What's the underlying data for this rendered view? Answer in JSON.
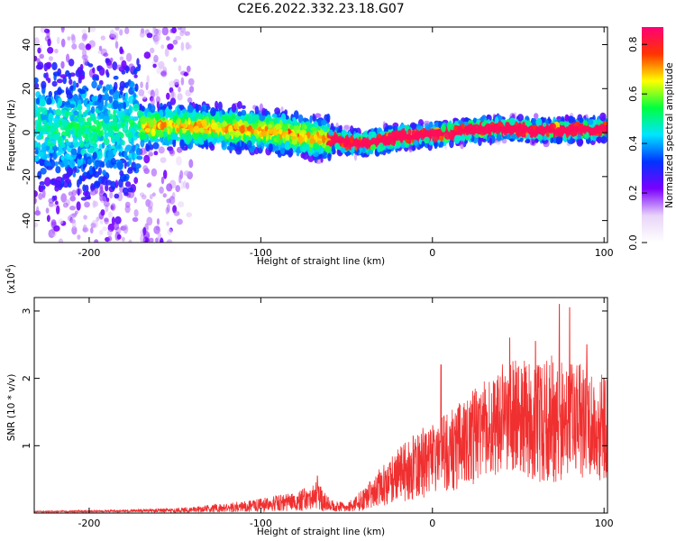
{
  "page": {
    "title": "C2E6.2022.332.23.18.G07"
  },
  "chart_data": [
    {
      "type": "heatmap",
      "xlabel": "Height of straight line (km)",
      "ylabel": "Frequency (Hz)",
      "xlim": [
        -232,
        102
      ],
      "ylim": [
        -50,
        48
      ],
      "xticks": [
        -200,
        -100,
        0,
        100
      ],
      "yticks": [
        -40,
        -20,
        0,
        20,
        40
      ],
      "colorbar": {
        "label": "Normalized spectral amplitude",
        "range": [
          0.0,
          0.87
        ],
        "ticks": [
          0.0,
          0.2,
          0.4,
          0.6,
          0.8
        ],
        "tick_labels": [
          "0.0",
          "0.2",
          "0.4",
          "0.6",
          "0.8"
        ],
        "colormap": [
          "#ffffff",
          "#e8d4f8",
          "#7b00ff",
          "#0033ff",
          "#00e5ff",
          "#00ff40",
          "#ffff00",
          "#ff3300",
          "#ff0077"
        ]
      },
      "ridge": [
        {
          "x": -190,
          "y": 2
        },
        {
          "x": -150,
          "y": 3
        },
        {
          "x": -120,
          "y": 2
        },
        {
          "x": -100,
          "y": 1
        },
        {
          "x": -80,
          "y": -1
        },
        {
          "x": -60,
          "y": -3
        },
        {
          "x": -40,
          "y": -5
        },
        {
          "x": -20,
          "y": -2
        },
        {
          "x": 0,
          "y": -1
        },
        {
          "x": 20,
          "y": 1
        },
        {
          "x": 40,
          "y": 2
        },
        {
          "x": 60,
          "y": 1
        },
        {
          "x": 80,
          "y": 1
        },
        {
          "x": 100,
          "y": 2
        }
      ]
    },
    {
      "type": "line",
      "xlabel": "Height of straight line (km)",
      "ylabel": "SNR (10 * v/v)",
      "y_multiplier": "(x10",
      "y_multiplier_exp": "4",
      "y_multiplier_close": ")",
      "xlim": [
        -232,
        102
      ],
      "ylim": [
        0,
        3.2
      ],
      "xticks": [
        -200,
        -100,
        0,
        100
      ],
      "yticks": [
        1,
        2,
        3
      ],
      "color": "#f03030",
      "envelope": [
        {
          "x": -232,
          "mean": 0.02,
          "amp": 0.01
        },
        {
          "x": -180,
          "mean": 0.03,
          "amp": 0.02
        },
        {
          "x": -140,
          "mean": 0.05,
          "amp": 0.04
        },
        {
          "x": -120,
          "mean": 0.08,
          "amp": 0.07
        },
        {
          "x": -100,
          "mean": 0.12,
          "amp": 0.1
        },
        {
          "x": -80,
          "mean": 0.17,
          "amp": 0.14
        },
        {
          "x": -67,
          "mean": 0.25,
          "amp": 0.22
        },
        {
          "x": -60,
          "mean": 0.12,
          "amp": 0.1
        },
        {
          "x": -50,
          "mean": 0.08,
          "amp": 0.06
        },
        {
          "x": -40,
          "mean": 0.2,
          "amp": 0.17
        },
        {
          "x": -30,
          "mean": 0.4,
          "amp": 0.3
        },
        {
          "x": -20,
          "mean": 0.55,
          "amp": 0.4
        },
        {
          "x": -10,
          "mean": 0.7,
          "amp": 0.5
        },
        {
          "x": 0,
          "mean": 0.8,
          "amp": 0.55
        },
        {
          "x": 10,
          "mean": 0.9,
          "amp": 0.6
        },
        {
          "x": 20,
          "mean": 1.05,
          "amp": 0.7
        },
        {
          "x": 30,
          "mean": 1.25,
          "amp": 0.75
        },
        {
          "x": 40,
          "mean": 1.4,
          "amp": 0.8
        },
        {
          "x": 50,
          "mean": 1.45,
          "amp": 0.85
        },
        {
          "x": 60,
          "mean": 1.35,
          "amp": 0.9
        },
        {
          "x": 70,
          "mean": 1.4,
          "amp": 0.95
        },
        {
          "x": 80,
          "mean": 1.35,
          "amp": 0.9
        },
        {
          "x": 90,
          "mean": 1.3,
          "amp": 0.9
        },
        {
          "x": 102,
          "mean": 1.3,
          "amp": 0.8
        }
      ],
      "peaks": [
        {
          "x": -67,
          "y": 0.55
        },
        {
          "x": 5,
          "y": 2.2
        },
        {
          "x": 45,
          "y": 2.6
        },
        {
          "x": 60,
          "y": 2.55
        },
        {
          "x": 74,
          "y": 3.1
        },
        {
          "x": 80,
          "y": 3.05
        },
        {
          "x": 90,
          "y": 2.5
        }
      ]
    }
  ]
}
